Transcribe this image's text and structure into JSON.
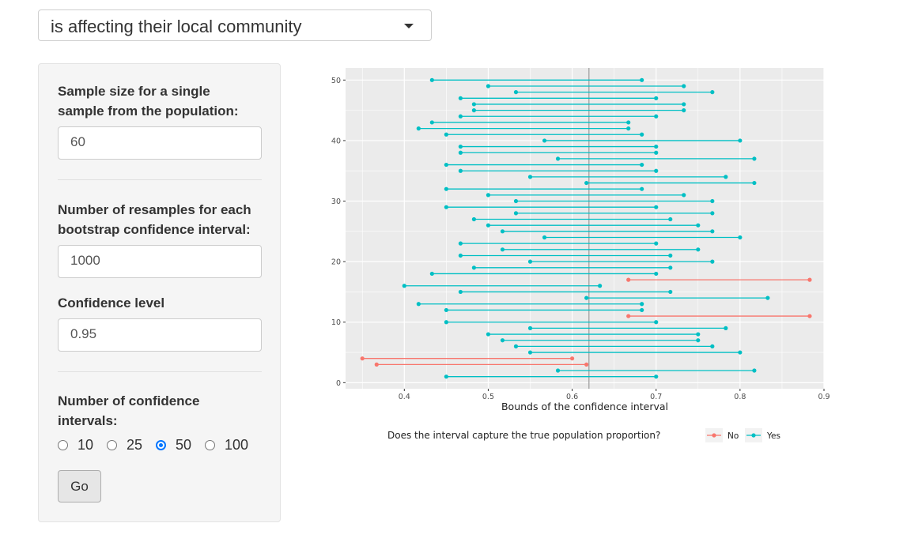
{
  "topbar": {
    "selected": "is affecting their local community"
  },
  "panel": {
    "sample_size_label_1": "Sample size for a single",
    "sample_size_label_2": "sample from the population:",
    "sample_size_value": "60",
    "resamples_label_1": "Number of resamples for each",
    "resamples_label_2": "bootstrap confidence interval:",
    "resamples_value": "1000",
    "confidence_label": "Confidence level",
    "confidence_value": "0.95",
    "num_intervals_label_1": "Number of confidence",
    "num_intervals_label_2": "intervals:",
    "num_intervals_options": [
      "10",
      "25",
      "50",
      "100"
    ],
    "num_intervals_selected": "50",
    "go_label": "Go"
  },
  "colors": {
    "yes": "#00BFC4",
    "no": "#F8766D",
    "panel_bg": "#EBEBEB",
    "radio_on": "#0075ff"
  },
  "chart_data": {
    "type": "scatter",
    "xlabel": "Bounds of the confidence interval",
    "ylabel": "",
    "xlim": [
      0.33,
      0.9
    ],
    "ylim": [
      -1,
      52
    ],
    "x_ticks": [
      "0.4",
      "0.5",
      "0.6",
      "0.7",
      "0.8",
      "0.9"
    ],
    "y_ticks": [
      "0",
      "10",
      "20",
      "30",
      "40",
      "50"
    ],
    "reference_line": 0.62,
    "legend_title": "Does the interval capture the true population proportion?",
    "legend_items": [
      {
        "label": "No",
        "key": "no"
      },
      {
        "label": "Yes",
        "key": "yes"
      }
    ],
    "legend_position": "bottom",
    "grid": true,
    "intervals": [
      {
        "id": 1,
        "lower": 0.45,
        "upper": 0.7,
        "captured": "Yes"
      },
      {
        "id": 2,
        "lower": 0.583,
        "upper": 0.817,
        "captured": "Yes"
      },
      {
        "id": 3,
        "lower": 0.367,
        "upper": 0.617,
        "captured": "No"
      },
      {
        "id": 4,
        "lower": 0.35,
        "upper": 0.6,
        "captured": "No"
      },
      {
        "id": 5,
        "lower": 0.55,
        "upper": 0.8,
        "captured": "Yes"
      },
      {
        "id": 6,
        "lower": 0.533,
        "upper": 0.767,
        "captured": "Yes"
      },
      {
        "id": 7,
        "lower": 0.517,
        "upper": 0.75,
        "captured": "Yes"
      },
      {
        "id": 8,
        "lower": 0.5,
        "upper": 0.75,
        "captured": "Yes"
      },
      {
        "id": 9,
        "lower": 0.55,
        "upper": 0.783,
        "captured": "Yes"
      },
      {
        "id": 10,
        "lower": 0.45,
        "upper": 0.7,
        "captured": "Yes"
      },
      {
        "id": 11,
        "lower": 0.667,
        "upper": 0.883,
        "captured": "No"
      },
      {
        "id": 12,
        "lower": 0.45,
        "upper": 0.683,
        "captured": "Yes"
      },
      {
        "id": 13,
        "lower": 0.417,
        "upper": 0.683,
        "captured": "Yes"
      },
      {
        "id": 14,
        "lower": 0.617,
        "upper": 0.833,
        "captured": "Yes"
      },
      {
        "id": 15,
        "lower": 0.467,
        "upper": 0.717,
        "captured": "Yes"
      },
      {
        "id": 16,
        "lower": 0.4,
        "upper": 0.633,
        "captured": "Yes"
      },
      {
        "id": 17,
        "lower": 0.667,
        "upper": 0.883,
        "captured": "No"
      },
      {
        "id": 18,
        "lower": 0.433,
        "upper": 0.7,
        "captured": "Yes"
      },
      {
        "id": 19,
        "lower": 0.483,
        "upper": 0.717,
        "captured": "Yes"
      },
      {
        "id": 20,
        "lower": 0.55,
        "upper": 0.767,
        "captured": "Yes"
      },
      {
        "id": 21,
        "lower": 0.467,
        "upper": 0.717,
        "captured": "Yes"
      },
      {
        "id": 22,
        "lower": 0.517,
        "upper": 0.75,
        "captured": "Yes"
      },
      {
        "id": 23,
        "lower": 0.467,
        "upper": 0.7,
        "captured": "Yes"
      },
      {
        "id": 24,
        "lower": 0.567,
        "upper": 0.8,
        "captured": "Yes"
      },
      {
        "id": 25,
        "lower": 0.517,
        "upper": 0.767,
        "captured": "Yes"
      },
      {
        "id": 26,
        "lower": 0.5,
        "upper": 0.75,
        "captured": "Yes"
      },
      {
        "id": 27,
        "lower": 0.483,
        "upper": 0.717,
        "captured": "Yes"
      },
      {
        "id": 28,
        "lower": 0.533,
        "upper": 0.767,
        "captured": "Yes"
      },
      {
        "id": 29,
        "lower": 0.45,
        "upper": 0.7,
        "captured": "Yes"
      },
      {
        "id": 30,
        "lower": 0.533,
        "upper": 0.767,
        "captured": "Yes"
      },
      {
        "id": 31,
        "lower": 0.5,
        "upper": 0.733,
        "captured": "Yes"
      },
      {
        "id": 32,
        "lower": 0.45,
        "upper": 0.683,
        "captured": "Yes"
      },
      {
        "id": 33,
        "lower": 0.617,
        "upper": 0.817,
        "captured": "Yes"
      },
      {
        "id": 34,
        "lower": 0.55,
        "upper": 0.783,
        "captured": "Yes"
      },
      {
        "id": 35,
        "lower": 0.467,
        "upper": 0.7,
        "captured": "Yes"
      },
      {
        "id": 36,
        "lower": 0.45,
        "upper": 0.683,
        "captured": "Yes"
      },
      {
        "id": 37,
        "lower": 0.583,
        "upper": 0.817,
        "captured": "Yes"
      },
      {
        "id": 38,
        "lower": 0.467,
        "upper": 0.7,
        "captured": "Yes"
      },
      {
        "id": 39,
        "lower": 0.467,
        "upper": 0.7,
        "captured": "Yes"
      },
      {
        "id": 40,
        "lower": 0.567,
        "upper": 0.8,
        "captured": "Yes"
      },
      {
        "id": 41,
        "lower": 0.45,
        "upper": 0.683,
        "captured": "Yes"
      },
      {
        "id": 42,
        "lower": 0.417,
        "upper": 0.667,
        "captured": "Yes"
      },
      {
        "id": 43,
        "lower": 0.433,
        "upper": 0.667,
        "captured": "Yes"
      },
      {
        "id": 44,
        "lower": 0.467,
        "upper": 0.7,
        "captured": "Yes"
      },
      {
        "id": 45,
        "lower": 0.483,
        "upper": 0.733,
        "captured": "Yes"
      },
      {
        "id": 46,
        "lower": 0.483,
        "upper": 0.733,
        "captured": "Yes"
      },
      {
        "id": 47,
        "lower": 0.467,
        "upper": 0.7,
        "captured": "Yes"
      },
      {
        "id": 48,
        "lower": 0.533,
        "upper": 0.767,
        "captured": "Yes"
      },
      {
        "id": 49,
        "lower": 0.5,
        "upper": 0.733,
        "captured": "Yes"
      },
      {
        "id": 50,
        "lower": 0.433,
        "upper": 0.683,
        "captured": "Yes"
      }
    ]
  }
}
